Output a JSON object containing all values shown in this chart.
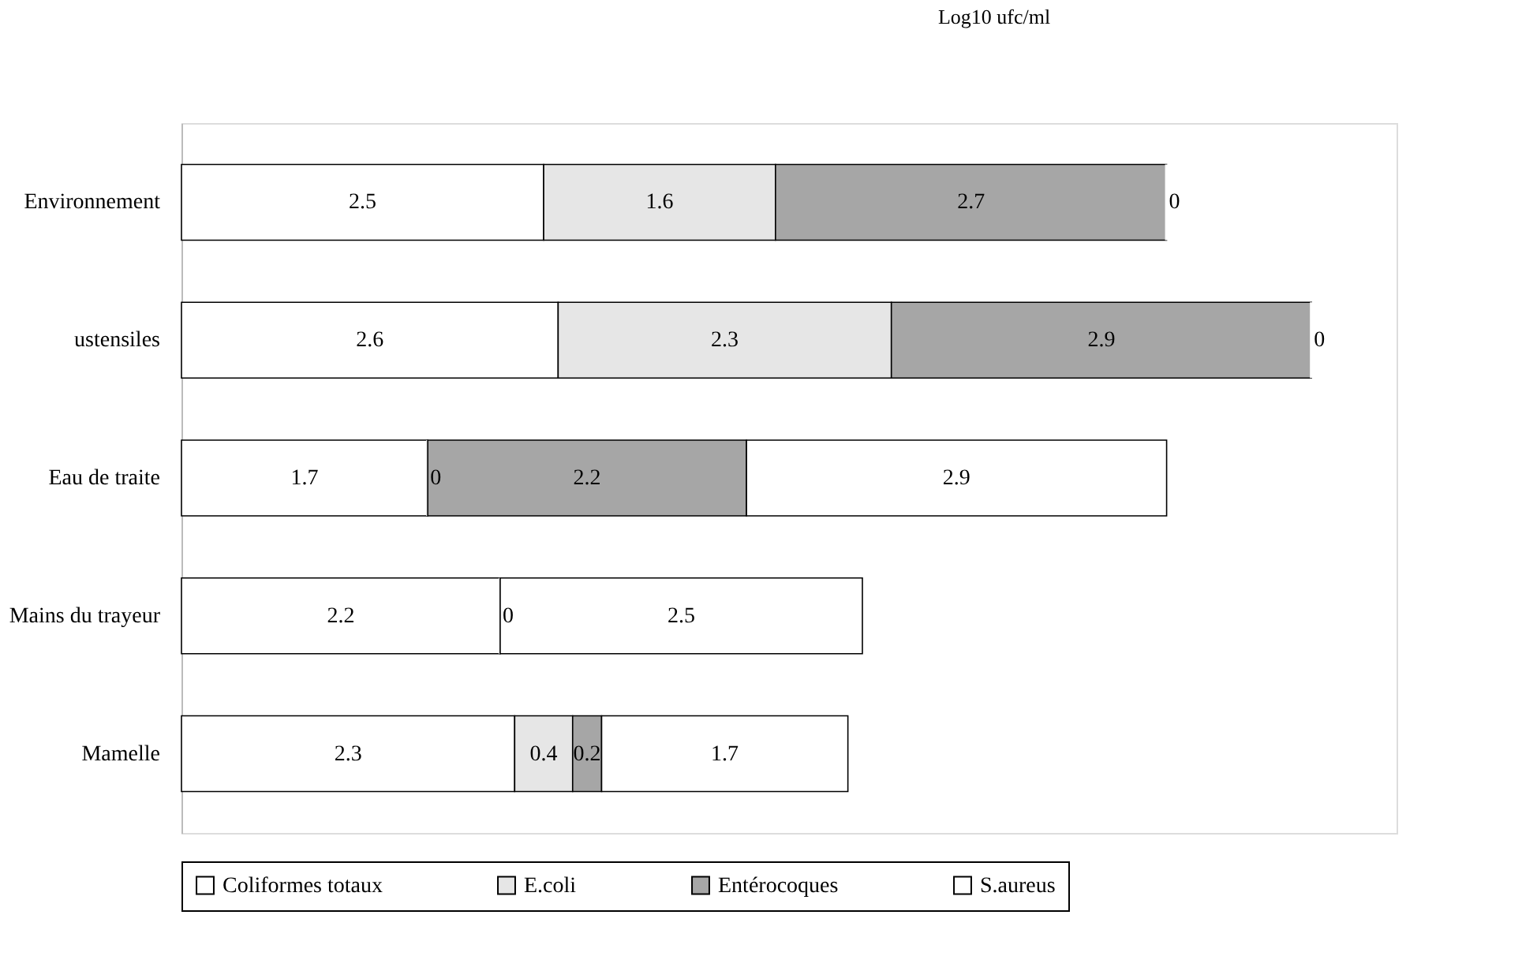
{
  "chart_data": {
    "type": "bar",
    "orientation": "horizontal",
    "stacked": true,
    "title": "Log10 ufc/ml",
    "categories": [
      "Environnement",
      "ustensiles",
      "Eau de traite",
      "Mains du trayeur",
      "Mamelle"
    ],
    "series": [
      {
        "name": "Coliformes totaux",
        "color": "#ffffff",
        "values": [
          2.5,
          2.6,
          1.7,
          2.2,
          2.3
        ],
        "value_labels": [
          "2.5",
          "2.6",
          "1.7",
          "2.2",
          "2.3"
        ]
      },
      {
        "name": "E.coli",
        "color": "#e6e6e6",
        "values": [
          1.6,
          2.3,
          0,
          0,
          0.4
        ],
        "value_labels": [
          "1.6",
          "2.3",
          "0",
          "0",
          "0.4"
        ]
      },
      {
        "name": "Entérocoques",
        "color": "#a6a6a6",
        "values": [
          2.7,
          2.9,
          2.2,
          null,
          0.2
        ],
        "value_labels": [
          "2.7",
          "2.9",
          "2.2",
          null,
          "0.2"
        ]
      },
      {
        "name": "S.aureus",
        "color": "#ffffff",
        "values": [
          0,
          0,
          2.9,
          2.5,
          1.7
        ],
        "value_labels": [
          "0",
          "0",
          "2.9",
          "2.5",
          "1.7"
        ]
      }
    ],
    "legend": "bottom",
    "grid": false
  }
}
